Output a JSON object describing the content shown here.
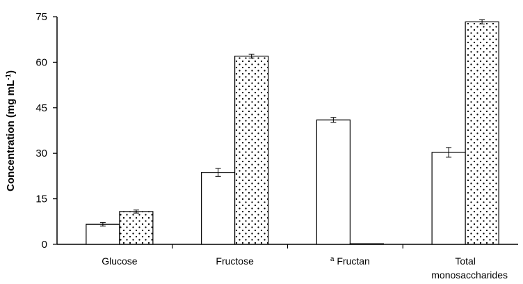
{
  "chart_data": {
    "type": "bar",
    "ylabel": "Concentration (mg mL",
    "ylabel_sup": "-1",
    "ylabel_close": ")",
    "ylim": [
      0,
      75
    ],
    "yticks": [
      "0",
      "15",
      "30",
      "45",
      "60",
      "75"
    ],
    "categories": [
      {
        "pre": "",
        "sup": "",
        "line1": "Glucose",
        "line2": ""
      },
      {
        "pre": "",
        "sup": "",
        "line1": "Fructose",
        "line2": ""
      },
      {
        "pre": "",
        "sup": "a",
        "line1": "Fructan",
        "line2": ""
      },
      {
        "pre": "",
        "sup": "",
        "line1": "Total",
        "line2": "monosaccharides"
      }
    ],
    "series": [
      {
        "pattern": "open",
        "values": [
          6.6,
          23.7,
          41.0,
          30.3
        ],
        "errors": [
          0.6,
          1.3,
          0.8,
          1.6
        ]
      },
      {
        "pattern": "dotted",
        "values": [
          10.8,
          62.0,
          0.2,
          73.3
        ],
        "errors": [
          0.5,
          0.6,
          0.0,
          0.7
        ]
      }
    ],
    "grid": false,
    "legend": "none"
  }
}
